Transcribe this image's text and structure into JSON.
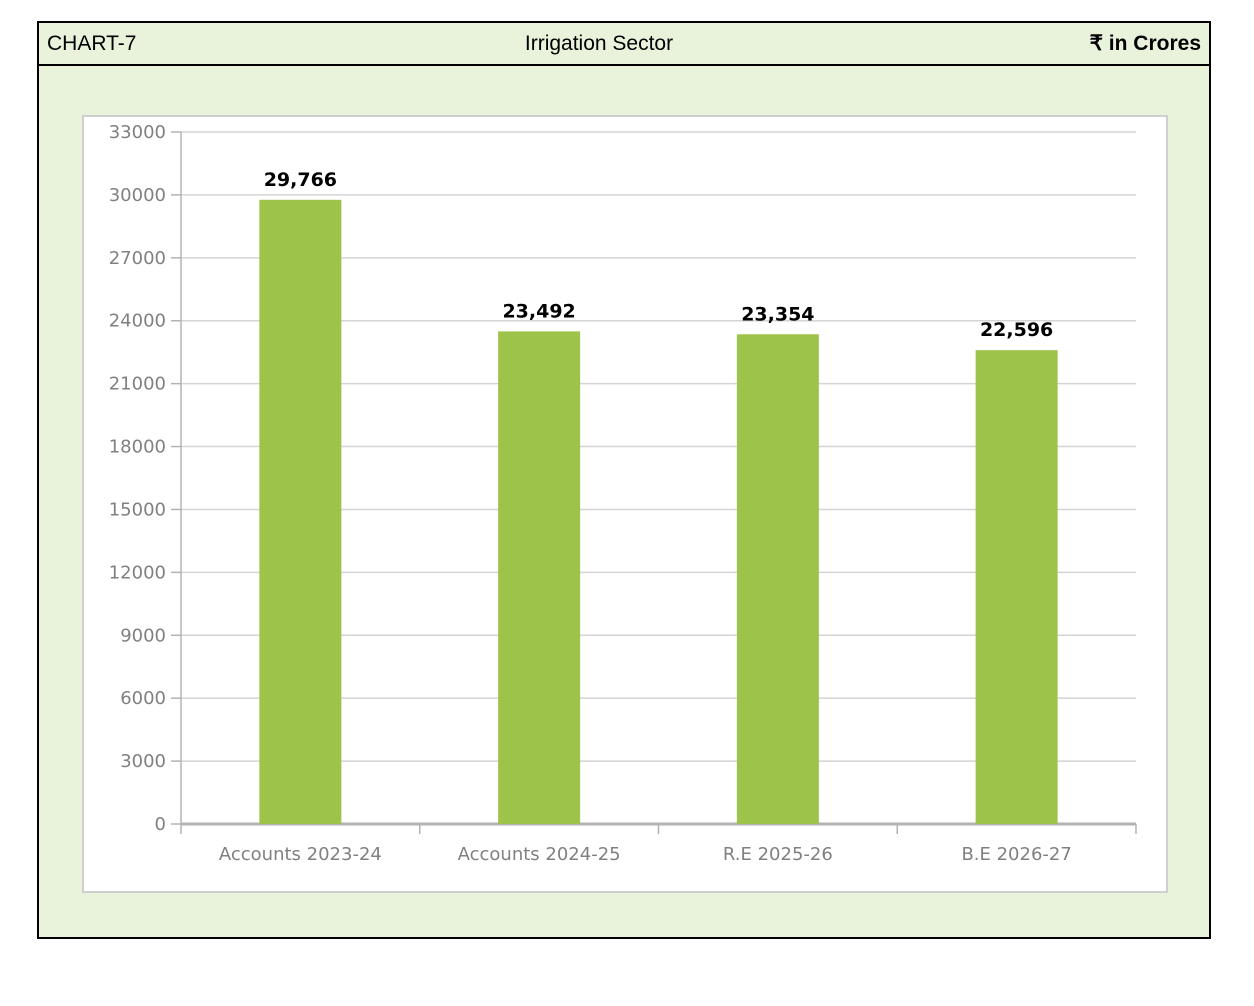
{
  "header": {
    "chart_id": "CHART-7",
    "title": "Irrigation Sector",
    "unit": "₹ in Crores"
  },
  "colors": {
    "bar": "#9dc34a",
    "background": "#e9f3dc",
    "grid": "#d4d4d4",
    "axis": "#b3b3b3"
  },
  "chart_data": {
    "type": "bar",
    "title": "Irrigation Sector",
    "xlabel": "",
    "ylabel": "₹ in Crores",
    "categories": [
      "Accounts 2023-24",
      "Accounts 2024-25",
      "R.E 2025-26",
      "B.E 2026-27"
    ],
    "values": [
      29766,
      23492,
      23354,
      22596
    ],
    "value_labels": [
      "29,766",
      "23,492",
      "23,354",
      "22,596"
    ],
    "ylim": [
      0,
      33000
    ],
    "yticks": [
      0,
      3000,
      6000,
      9000,
      12000,
      15000,
      18000,
      21000,
      24000,
      27000,
      30000,
      33000
    ],
    "grid": true,
    "legend": "none"
  }
}
